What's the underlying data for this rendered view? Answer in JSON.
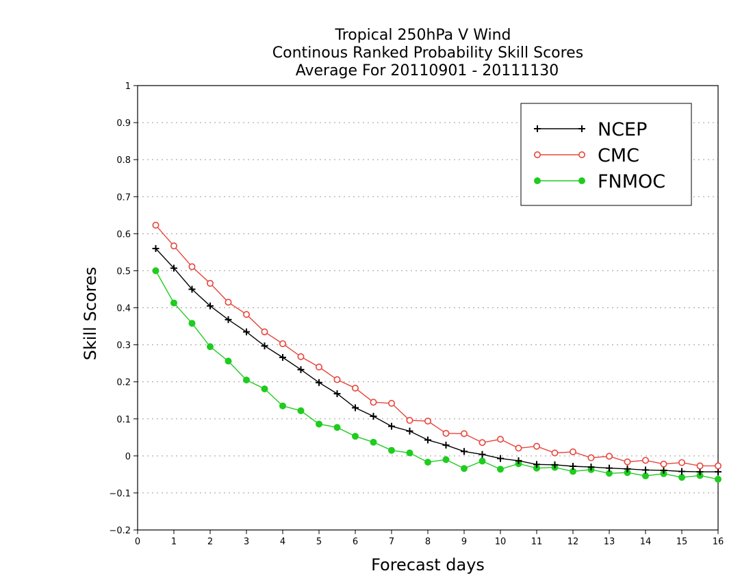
{
  "chart_data": {
    "type": "line",
    "title_lines": [
      "Tropical 250hPa V Wind",
      "Continous Ranked Probability Skill Scores",
      "Average For 20110901 - 20111130"
    ],
    "xlabel": "Forecast days",
    "ylabel": "Skill Scores",
    "xlim": [
      0,
      16
    ],
    "ylim": [
      -0.2,
      1
    ],
    "x_ticks": [
      "0",
      "1",
      "2",
      "3",
      "4",
      "5",
      "6",
      "7",
      "8",
      "9",
      "10",
      "11",
      "12",
      "13",
      "14",
      "15",
      "16"
    ],
    "y_ticks": [
      "−0.2",
      "−0.1",
      "0",
      "0.1",
      "0.2",
      "0.3",
      "0.4",
      "0.5",
      "0.6",
      "0.7",
      "0.8",
      "0.9",
      "1"
    ],
    "grid": "horizontal-dotted",
    "legend_position": "top-right",
    "x": [
      0.5,
      1,
      1.5,
      2,
      2.5,
      3,
      3.5,
      4,
      4.5,
      5,
      5.5,
      6,
      6.5,
      7,
      7.5,
      8,
      8.5,
      9,
      9.5,
      10,
      10.5,
      11,
      11.5,
      12,
      12.5,
      13,
      13.5,
      14,
      14.5,
      15,
      15.5,
      16
    ],
    "series": [
      {
        "name": "NCEP",
        "color": "#000000",
        "marker": "plus",
        "values": [
          0.56,
          0.507,
          0.45,
          0.405,
          0.368,
          0.335,
          0.297,
          0.266,
          0.233,
          0.198,
          0.168,
          0.13,
          0.107,
          0.08,
          0.067,
          0.043,
          0.029,
          0.012,
          0.004,
          -0.007,
          -0.013,
          -0.023,
          -0.024,
          -0.028,
          -0.03,
          -0.033,
          -0.035,
          -0.038,
          -0.039,
          -0.042,
          -0.043,
          -0.043
        ]
      },
      {
        "name": "CMC",
        "color": "#e8443a",
        "marker": "open-circle",
        "values": [
          0.623,
          0.567,
          0.511,
          0.466,
          0.415,
          0.382,
          0.335,
          0.303,
          0.268,
          0.24,
          0.206,
          0.183,
          0.145,
          0.142,
          0.096,
          0.094,
          0.061,
          0.06,
          0.036,
          0.045,
          0.021,
          0.026,
          0.008,
          0.011,
          -0.005,
          -0.001,
          -0.016,
          -0.012,
          -0.022,
          -0.018,
          -0.027,
          -0.027
        ]
      },
      {
        "name": "FNMOC",
        "color": "#1fcc1f",
        "marker": "filled-circle",
        "values": [
          0.5,
          0.413,
          0.358,
          0.295,
          0.256,
          0.205,
          0.181,
          0.135,
          0.122,
          0.086,
          0.077,
          0.053,
          0.037,
          0.015,
          0.008,
          -0.017,
          -0.01,
          -0.034,
          -0.014,
          -0.036,
          -0.021,
          -0.033,
          -0.031,
          -0.042,
          -0.037,
          -0.047,
          -0.045,
          -0.054,
          -0.048,
          -0.058,
          -0.053,
          -0.063
        ]
      }
    ]
  }
}
